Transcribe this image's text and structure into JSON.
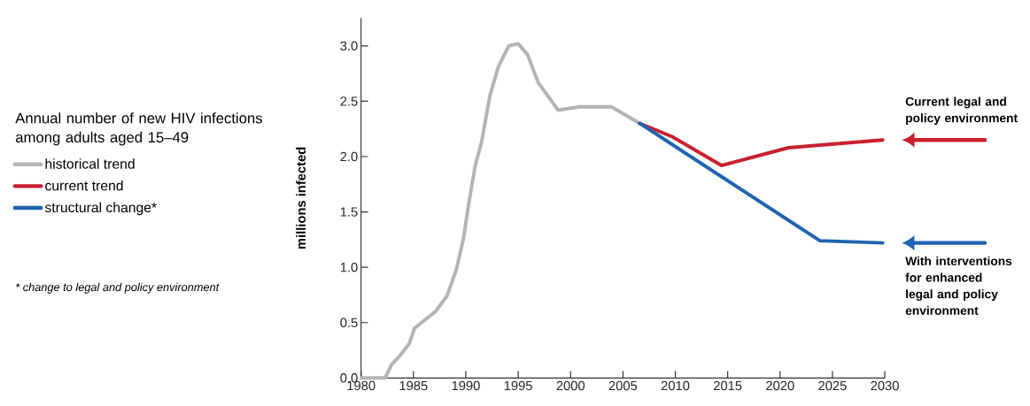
{
  "chart_data": {
    "type": "line",
    "title": "Annual number of new HIV infections among adults aged 15–49",
    "ylabel": "millions infected",
    "xlim": [
      1980,
      2030
    ],
    "xticks": [
      1980,
      1985,
      1990,
      1995,
      2000,
      2005,
      2010,
      2015,
      2020,
      2025,
      2030
    ],
    "ylim": [
      0,
      3.25
    ],
    "yticks": [
      {
        "value": 0,
        "label": "0.0"
      },
      {
        "value": 0.5,
        "label": "0.5"
      },
      {
        "value": 1,
        "label": "1.0"
      },
      {
        "value": 1.5,
        "label": "1.5"
      },
      {
        "value": 2,
        "label": "2.0"
      },
      {
        "value": 2.5,
        "label": "2.5"
      },
      {
        "value": 3,
        "label": "3.0"
      }
    ],
    "legend": "left",
    "grid": false,
    "marker": "none",
    "line_style": "solid",
    "series": [
      {
        "name": "historical trend",
        "color": "#b3b3b8",
        "x": [
          1980,
          1982.3,
          1982.9,
          1983.7,
          1984.6,
          1985.1,
          1987.1,
          1988.2,
          1989.1,
          1989.8,
          1990.2,
          1990.9,
          1991.5,
          1992.3,
          1993.1,
          1994.1,
          1995.0,
          1995.9,
          1996.9,
          1998.8,
          2000.9,
          2003.9,
          2006.6
        ],
        "values": [
          0.0,
          0.0,
          0.12,
          0.2,
          0.31,
          0.45,
          0.6,
          0.74,
          0.98,
          1.27,
          1.53,
          1.92,
          2.13,
          2.55,
          2.81,
          3.0,
          3.02,
          2.92,
          2.67,
          2.42,
          2.45,
          2.45,
          2.3
        ]
      },
      {
        "name": "current trend",
        "color": "#c8202f",
        "x": [
          2006.6,
          2009.7,
          2014.4,
          2020.8,
          2029.8
        ],
        "values": [
          2.3,
          2.18,
          1.92,
          2.08,
          2.15
        ]
      },
      {
        "name": "structural change*",
        "color": "#1e64b0",
        "x": [
          2006.6,
          2023.8,
          2029.8
        ],
        "values": [
          2.3,
          1.24,
          1.22
        ]
      }
    ],
    "annotations": [
      "* change to legal and policy environment",
      "Current legal and policy environment",
      "With interventions for enhanced legal and policy environment"
    ]
  }
}
